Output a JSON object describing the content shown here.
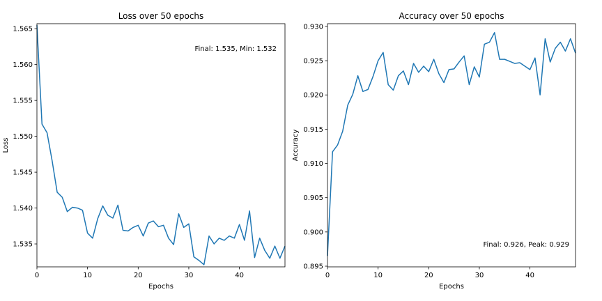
{
  "chart_data": [
    {
      "type": "line",
      "title": "Loss over 50 epochs",
      "xlabel": "Epochs",
      "ylabel": "Loss",
      "xlim": [
        0,
        49
      ],
      "ylim": [
        1.5318,
        1.5657
      ],
      "xticks": [
        0,
        10,
        20,
        30,
        40
      ],
      "yticks": [
        1.535,
        1.54,
        1.545,
        1.55,
        1.555,
        1.56,
        1.565
      ],
      "ytick_labels": [
        "1.535",
        "1.540",
        "1.545",
        "1.550",
        "1.555",
        "1.560",
        "1.565"
      ],
      "annotation": "Final: 1.535, Min: 1.532",
      "annotation_position": "top-right",
      "grid": false,
      "color": "#1f77b4",
      "x": [
        0,
        1,
        2,
        3,
        4,
        5,
        6,
        7,
        8,
        9,
        10,
        11,
        12,
        13,
        14,
        15,
        16,
        17,
        18,
        19,
        20,
        21,
        22,
        23,
        24,
        25,
        26,
        27,
        28,
        29,
        30,
        31,
        32,
        33,
        34,
        35,
        36,
        37,
        38,
        39,
        40,
        41,
        42,
        43,
        44,
        45,
        46,
        47,
        48,
        49
      ],
      "values": [
        1.5655,
        1.5517,
        1.5505,
        1.5466,
        1.5422,
        1.5415,
        1.5395,
        1.5401,
        1.54,
        1.5397,
        1.5365,
        1.5358,
        1.5385,
        1.5403,
        1.539,
        1.5386,
        1.5404,
        1.5369,
        1.5368,
        1.5373,
        1.5376,
        1.5361,
        1.5379,
        1.5382,
        1.5374,
        1.5376,
        1.5358,
        1.5349,
        1.5392,
        1.5373,
        1.5378,
        1.5332,
        1.5327,
        1.5321,
        1.5361,
        1.535,
        1.5358,
        1.5355,
        1.5361,
        1.5358,
        1.5377,
        1.5355,
        1.5396,
        1.5331,
        1.5358,
        1.5341,
        1.533,
        1.5347,
        1.533,
        1.5347
      ]
    },
    {
      "type": "line",
      "title": "Accuracy over 50 epochs",
      "xlabel": "Epochs",
      "ylabel": "Accuracy",
      "xlim": [
        0,
        49
      ],
      "ylim": [
        0.8949,
        0.9304
      ],
      "xticks": [
        0,
        10,
        20,
        30,
        40
      ],
      "yticks": [
        0.895,
        0.9,
        0.905,
        0.91,
        0.915,
        0.92,
        0.925,
        0.93
      ],
      "ytick_labels": [
        "0.895",
        "0.900",
        "0.905",
        "0.910",
        "0.915",
        "0.920",
        "0.925",
        "0.930"
      ],
      "annotation": "Final: 0.926, Peak: 0.929",
      "annotation_position": "bottom-right",
      "grid": false,
      "color": "#1f77b4",
      "x": [
        0,
        1,
        2,
        3,
        4,
        5,
        6,
        7,
        8,
        9,
        10,
        11,
        12,
        13,
        14,
        15,
        16,
        17,
        18,
        19,
        20,
        21,
        22,
        23,
        24,
        25,
        26,
        27,
        28,
        29,
        30,
        31,
        32,
        33,
        34,
        35,
        36,
        37,
        38,
        39,
        40,
        41,
        42,
        43,
        44,
        45,
        46,
        47,
        48,
        49
      ],
      "values": [
        0.8965,
        0.9117,
        0.9127,
        0.9147,
        0.9185,
        0.9201,
        0.9228,
        0.9205,
        0.9208,
        0.9227,
        0.925,
        0.9262,
        0.9215,
        0.9207,
        0.9228,
        0.9235,
        0.9215,
        0.9246,
        0.9233,
        0.9242,
        0.9234,
        0.9252,
        0.9231,
        0.9218,
        0.9237,
        0.9238,
        0.9248,
        0.9257,
        0.9215,
        0.9241,
        0.9226,
        0.9274,
        0.9277,
        0.9291,
        0.9252,
        0.9252,
        0.9249,
        0.9246,
        0.9247,
        0.9242,
        0.9237,
        0.9254,
        0.92,
        0.9282,
        0.9248,
        0.9268,
        0.9277,
        0.9264,
        0.9282,
        0.9261
      ]
    }
  ]
}
